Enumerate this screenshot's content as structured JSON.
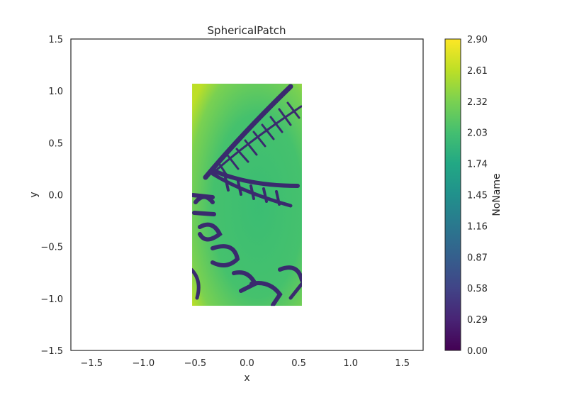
{
  "chart_data": {
    "type": "heatmap",
    "title": "SphericalPatch",
    "xlabel": "x",
    "ylabel": "y",
    "xlim": [
      -1.7,
      1.7
    ],
    "ylim": [
      -1.5,
      1.5
    ],
    "xticks": [
      -1.5,
      -1.0,
      -0.5,
      0.0,
      0.5,
      1.0,
      1.5
    ],
    "xtick_labels": [
      "−1.5",
      "−1.0",
      "−0.5",
      "0.0",
      "0.5",
      "1.0",
      "1.5"
    ],
    "yticks": [
      -1.5,
      -1.0,
      -0.5,
      0.0,
      0.5,
      1.0,
      1.5
    ],
    "ytick_labels": [
      "−1.5",
      "−1.0",
      "−0.5",
      "0.0",
      "0.5",
      "1.0",
      "1.5"
    ],
    "image_extent": {
      "x": [
        -0.53,
        0.53
      ],
      "y": [
        -1.07,
        1.07
      ]
    },
    "image_description": "texture image patch; background values ~2.0–2.6, dark strokes near 0",
    "colorbar": {
      "label": "NoName",
      "colormap": "viridis",
      "range": [
        0.0,
        2.9
      ],
      "ticks": [
        0.0,
        0.29,
        0.58,
        0.87,
        1.16,
        1.45,
        1.74,
        2.03,
        2.32,
        2.61,
        2.9
      ],
      "tick_labels": [
        "0.00",
        "0.29",
        "0.58",
        "0.87",
        "1.16",
        "1.45",
        "1.74",
        "2.03",
        "2.32",
        "2.61",
        "2.90"
      ]
    },
    "grid": false
  }
}
